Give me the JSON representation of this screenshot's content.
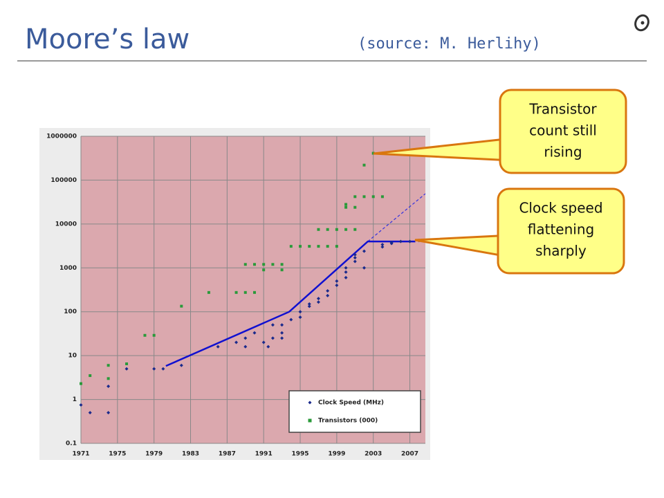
{
  "header": {
    "title": "Moore’s law",
    "source": "(source: M. Herlihy)"
  },
  "callouts": [
    {
      "lines": [
        "Transistor",
        "count still",
        "rising"
      ]
    },
    {
      "lines": [
        "Clock speed",
        "flattening",
        "sharply"
      ]
    }
  ],
  "chart_data": {
    "type": "scatter",
    "y_scale": "log",
    "grid": true,
    "legend": "bottom-right",
    "xlim": [
      1971,
      2008.7
    ],
    "xticks": [
      1971,
      1975,
      1979,
      1983,
      1987,
      1991,
      1995,
      1999,
      2003,
      2007
    ],
    "ylim": [
      0.1,
      1000000
    ],
    "yticks": [
      0.1,
      1,
      10,
      100,
      1000,
      10000,
      100000,
      1000000
    ],
    "series": [
      {
        "name": "Clock Speed (MHz)",
        "color": "#1a2a8c",
        "marker": "diamond",
        "x": [
          1971,
          1972,
          1974,
          1974,
          1976,
          1979,
          1980,
          1982,
          1986,
          1988,
          1989,
          1989,
          1990,
          1991,
          1991.5,
          1992,
          1992,
          1993,
          1993,
          1993,
          1994,
          1995,
          1995,
          1996,
          1996,
          1997,
          1997,
          1998,
          1998,
          1999,
          1999,
          2000,
          2000,
          2000,
          2001,
          2001,
          2001,
          2002,
          2002,
          2004,
          2004,
          2005,
          2005,
          2006,
          2007,
          2008
        ],
        "values": [
          0.75,
          0.5,
          2,
          0.5,
          5,
          5,
          5,
          6,
          16,
          20,
          16,
          25,
          33,
          20,
          16,
          25,
          50,
          33,
          25,
          50,
          66,
          75,
          100,
          133,
          150,
          200,
          166,
          233,
          300,
          400,
          500,
          600,
          800,
          1000,
          1400,
          1700,
          2000,
          2400,
          1000,
          3000,
          3400,
          3600,
          3800,
          4000,
          4000,
          4200
        ]
      },
      {
        "name": "Transistors (000)",
        "color": "#2a9a3a",
        "marker": "square",
        "x": [
          1971,
          1972,
          1974,
          1974,
          1976,
          1978,
          1979,
          1982,
          1985,
          1988,
          1989,
          1990,
          1989,
          1990,
          1991,
          1991,
          1992,
          1993,
          1993,
          1994,
          1995,
          1996,
          1997,
          1998,
          1999,
          1997,
          1998,
          1999,
          2000,
          2001,
          2000,
          2001,
          2000,
          2001,
          2002,
          2003,
          2004,
          2002,
          2003
        ],
        "values": [
          2.3,
          3.5,
          6,
          3,
          6.5,
          29,
          29,
          134,
          275,
          275,
          275,
          275,
          1200,
          1200,
          1200,
          900,
          1200,
          1200,
          900,
          3100,
          3100,
          3100,
          3100,
          3100,
          3100,
          7500,
          7500,
          7500,
          7500,
          7500,
          24000,
          24000,
          28000,
          42000,
          42000,
          42000,
          42000,
          220000,
          410000
        ]
      }
    ],
    "trend": {
      "color": "#1010d0",
      "x": [
        1980.3,
        1993.8,
        2002.4,
        2007.6
      ],
      "values": [
        5.8,
        100,
        4000,
        4000
      ]
    },
    "extrapolation": {
      "color": "#3030e0",
      "x": [
        2002.4,
        2008.7
      ],
      "values": [
        4000,
        49000
      ]
    }
  }
}
